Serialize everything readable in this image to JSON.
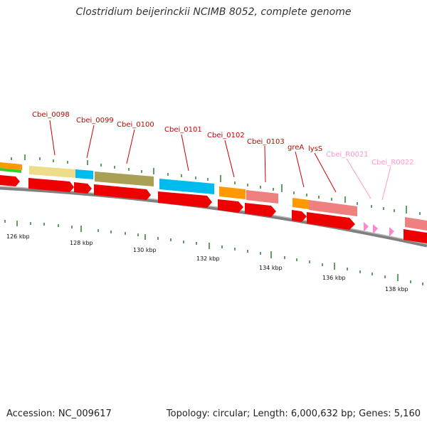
{
  "title": "Clostridium beijerinckii NCIMB 8052, complete genome",
  "footer": {
    "accession": "Accession: NC_009617",
    "summary": "Topology: circular; Length: 6,000,632 bp; Genes: 5,160"
  },
  "colors": {
    "cds": "#ff0000",
    "rrna_trna": "#ff99cc",
    "backbone": "#808080",
    "tick": "#2a7f2a",
    "label": "#cc0000",
    "label_rna": "#ff99cc"
  },
  "scale": {
    "labels": [
      "126 kbp",
      "128 kbp",
      "130 kbp",
      "132 kbp",
      "134 kbp",
      "136 kbp",
      "138 kbp"
    ]
  },
  "genes": [
    {
      "id": "Cbei_0098",
      "type": "cds"
    },
    {
      "id": "Cbei_0099",
      "type": "cds"
    },
    {
      "id": "Cbei_0100",
      "type": "cds"
    },
    {
      "id": "Cbei_0101",
      "type": "cds"
    },
    {
      "id": "Cbei_0102",
      "type": "cds"
    },
    {
      "id": "Cbei_0103",
      "type": "cds"
    },
    {
      "id": "greA",
      "type": "cds"
    },
    {
      "id": "lysS",
      "type": "cds"
    },
    {
      "id": "Cbei_R0021",
      "type": "rna"
    },
    {
      "id": "Cbei_R0022",
      "type": "rna"
    }
  ]
}
